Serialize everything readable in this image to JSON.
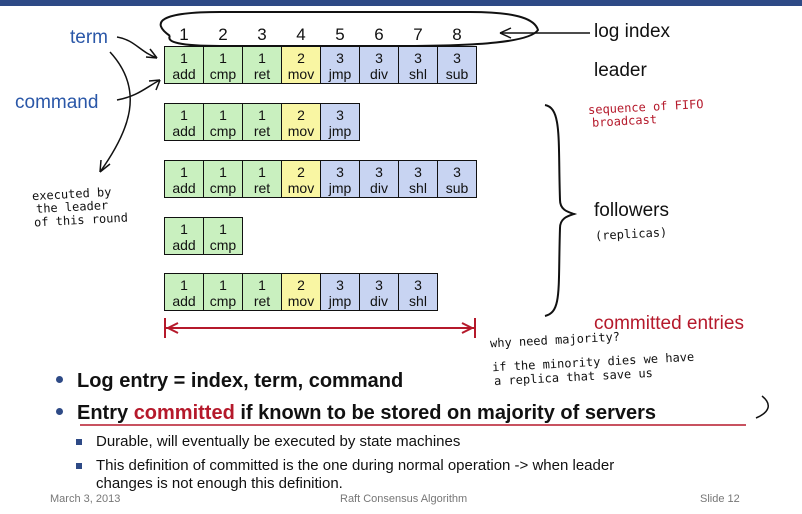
{
  "labels": {
    "term": "term",
    "command": "command",
    "log_index": "log index",
    "leader": "leader",
    "followers": "followers",
    "committed_entries": "committed entries"
  },
  "index_numbers": [
    "1",
    "2",
    "3",
    "4",
    "5",
    "6",
    "7",
    "8"
  ],
  "logs": [
    {
      "role": "leader",
      "entries": [
        {
          "term": "1",
          "cmd": "add"
        },
        {
          "term": "1",
          "cmd": "cmp"
        },
        {
          "term": "1",
          "cmd": "ret"
        },
        {
          "term": "2",
          "cmd": "mov"
        },
        {
          "term": "3",
          "cmd": "jmp"
        },
        {
          "term": "3",
          "cmd": "div"
        },
        {
          "term": "3",
          "cmd": "shl"
        },
        {
          "term": "3",
          "cmd": "sub"
        }
      ]
    },
    {
      "role": "follower",
      "entries": [
        {
          "term": "1",
          "cmd": "add"
        },
        {
          "term": "1",
          "cmd": "cmp"
        },
        {
          "term": "1",
          "cmd": "ret"
        },
        {
          "term": "2",
          "cmd": "mov"
        },
        {
          "term": "3",
          "cmd": "jmp"
        }
      ]
    },
    {
      "role": "follower",
      "entries": [
        {
          "term": "1",
          "cmd": "add"
        },
        {
          "term": "1",
          "cmd": "cmp"
        },
        {
          "term": "1",
          "cmd": "ret"
        },
        {
          "term": "2",
          "cmd": "mov"
        },
        {
          "term": "3",
          "cmd": "jmp"
        },
        {
          "term": "3",
          "cmd": "div"
        },
        {
          "term": "3",
          "cmd": "shl"
        },
        {
          "term": "3",
          "cmd": "sub"
        }
      ]
    },
    {
      "role": "follower",
      "entries": [
        {
          "term": "1",
          "cmd": "add"
        },
        {
          "term": "1",
          "cmd": "cmp"
        }
      ]
    },
    {
      "role": "follower",
      "entries": [
        {
          "term": "1",
          "cmd": "add"
        },
        {
          "term": "1",
          "cmd": "cmp"
        },
        {
          "term": "1",
          "cmd": "ret"
        },
        {
          "term": "2",
          "cmd": "mov"
        },
        {
          "term": "3",
          "cmd": "jmp"
        },
        {
          "term": "3",
          "cmd": "div"
        },
        {
          "term": "3",
          "cmd": "shl"
        }
      ]
    }
  ],
  "term_colors": {
    "1": "#c9f0bf",
    "2": "#f9f6a3",
    "3": "#c8d4f2"
  },
  "handwritten": {
    "fifo": [
      "sequence of FIFO",
      "broadcast"
    ],
    "replicas": "(replicas)",
    "executed": [
      "executed by",
      "the leader",
      "of this round"
    ],
    "why_majority": "why need majority?",
    "minority": [
      "if the minority dies we have",
      "a replica that save us"
    ]
  },
  "bullets": {
    "b1": "Log entry = index, term, command",
    "b2_pre": "Entry ",
    "b2_red": "committed",
    "b2_post": " if known to be stored on majority of servers"
  },
  "subbullets": [
    "Durable, will eventually be executed by state machines",
    "This definition of committed is the one during normal operation -> when leader",
    "changes is not enough this definition."
  ],
  "footer": {
    "date": "March 3, 2013",
    "title": "Raft Consensus Algorithm",
    "slide": "Slide 12"
  }
}
